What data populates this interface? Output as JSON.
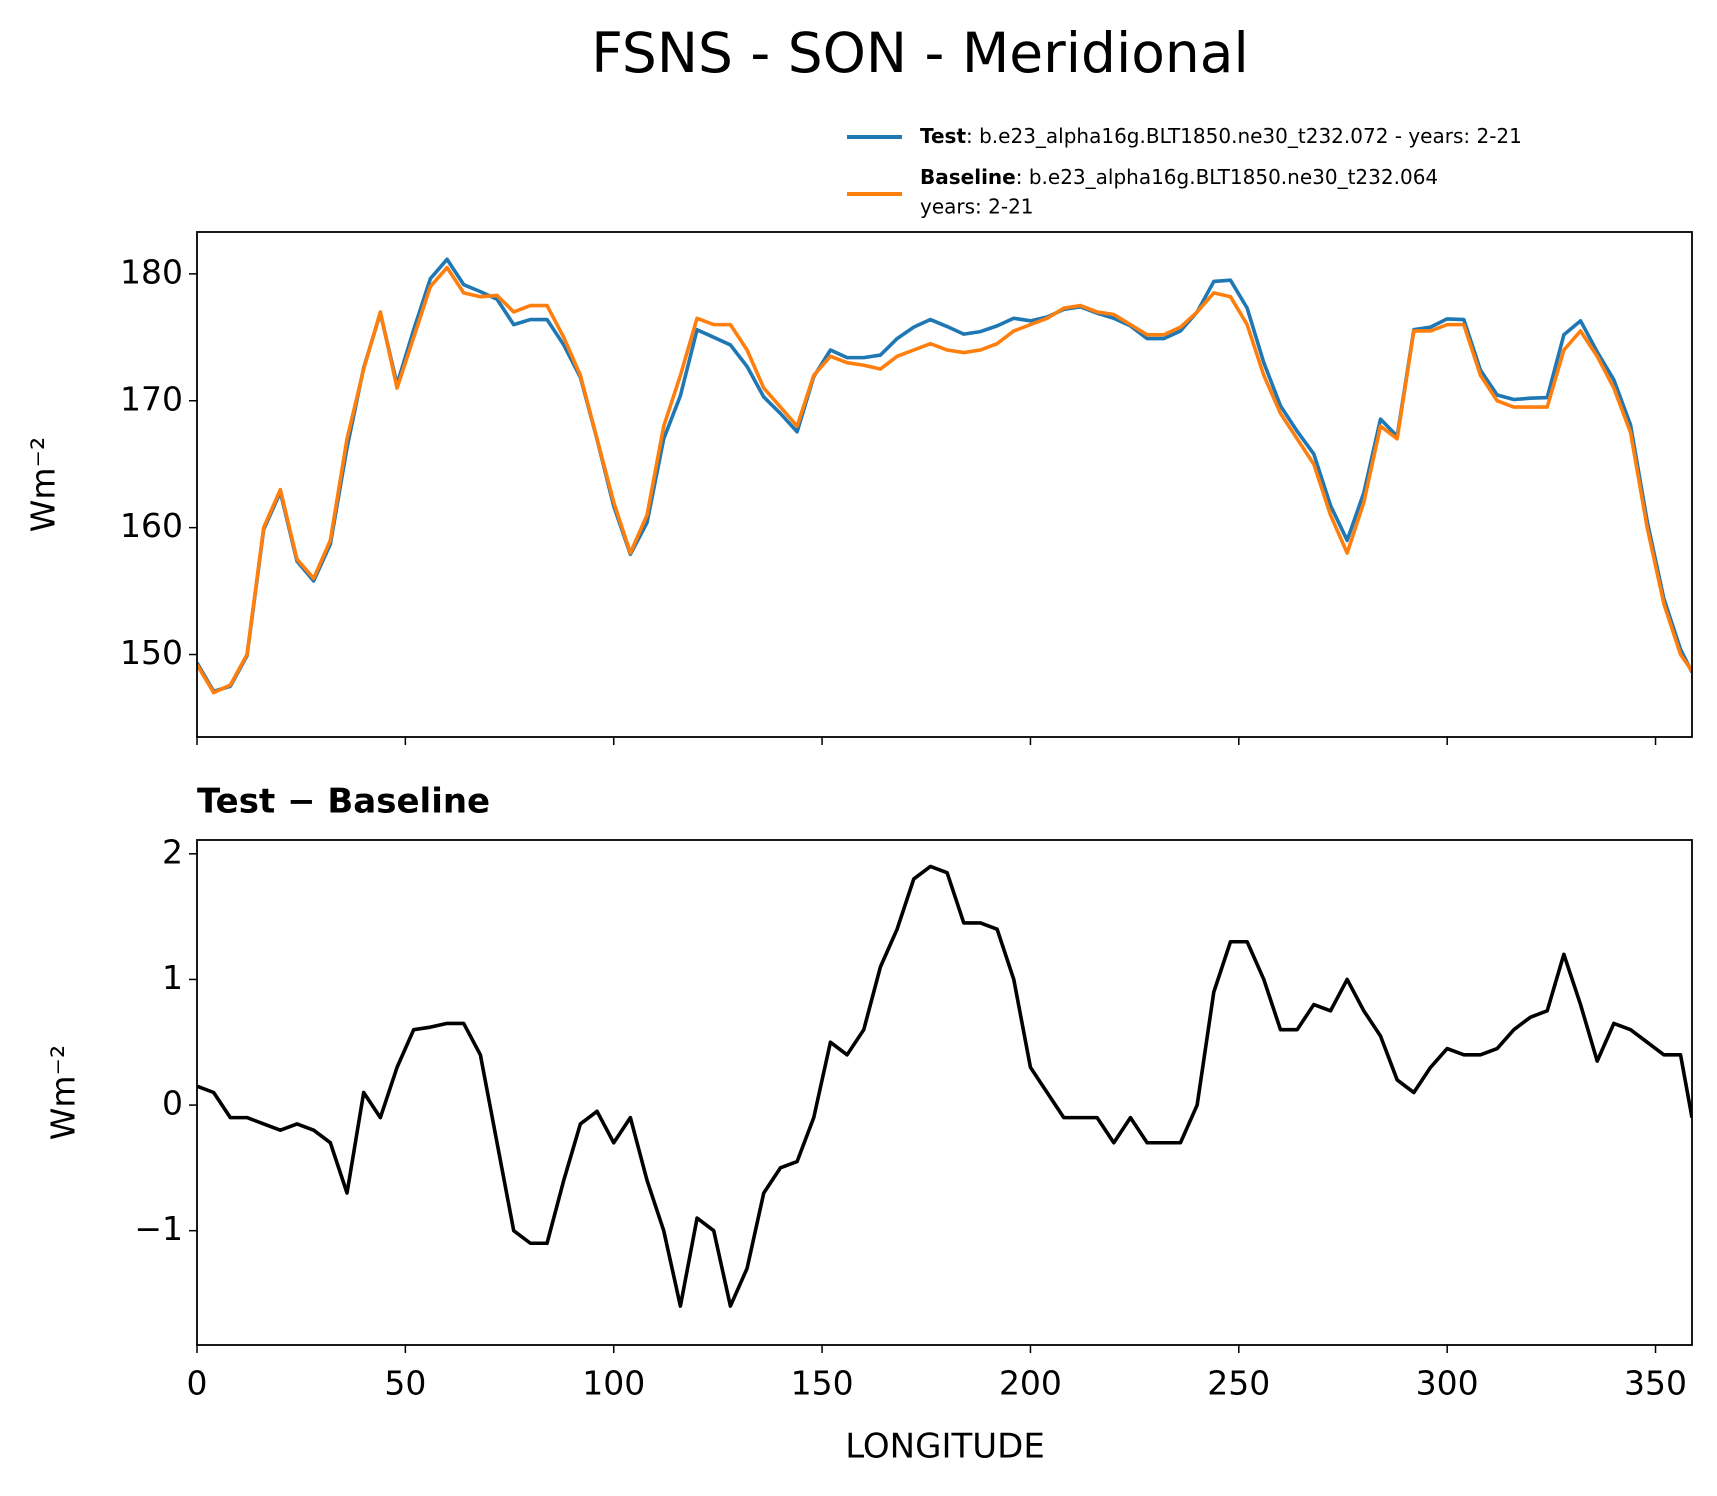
{
  "chart_data": [
    {
      "type": "line",
      "title": "FSNS - SON - Meridional",
      "ylabel": "Wm⁻²",
      "x": [
        0,
        4,
        8,
        12,
        16,
        20,
        24,
        28,
        32,
        36,
        40,
        44,
        48,
        52,
        56,
        60,
        64,
        68,
        72,
        76,
        80,
        84,
        88,
        92,
        96,
        100,
        104,
        108,
        112,
        116,
        120,
        124,
        128,
        132,
        136,
        140,
        144,
        148,
        152,
        156,
        160,
        164,
        168,
        172,
        176,
        180,
        184,
        188,
        192,
        196,
        200,
        204,
        208,
        212,
        216,
        220,
        224,
        228,
        232,
        236,
        240,
        244,
        248,
        252,
        256,
        260,
        264,
        268,
        272,
        276,
        280,
        284,
        288,
        292,
        296,
        300,
        304,
        308,
        312,
        316,
        320,
        324,
        328,
        332,
        336,
        340,
        344,
        348,
        352,
        356,
        358.75
      ],
      "series": [
        {
          "name": "Test",
          "description": [
            ": b.e23_alpha16g.BLT1850.ne30_t232.072 - years: 2-21"
          ],
          "color": "#1f77b4",
          "values": [
            149.35,
            147.1,
            147.5,
            149.9,
            159.85,
            162.8,
            157.35,
            155.8,
            158.7,
            166.3,
            172.6,
            176.9,
            171.3,
            175.6,
            179.62,
            181.15,
            179.15,
            178.6,
            178.0,
            176.0,
            176.4,
            176.4,
            174.4,
            171.85,
            166.95,
            161.7,
            157.9,
            160.4,
            167.0,
            170.4,
            175.6,
            175.0,
            174.4,
            172.7,
            170.3,
            169.0,
            167.55,
            171.9,
            174.0,
            173.4,
            173.4,
            173.6,
            174.9,
            175.8,
            176.4,
            175.85,
            175.25,
            175.45,
            175.9,
            176.5,
            176.3,
            176.6,
            177.2,
            177.4,
            176.9,
            176.5,
            175.9,
            174.9,
            174.9,
            175.5,
            177.0,
            179.4,
            179.5,
            177.3,
            173.0,
            169.6,
            167.6,
            165.8,
            161.75,
            159.0,
            162.75,
            168.55,
            167.2,
            175.6,
            175.8,
            176.45,
            176.4,
            172.4,
            170.45,
            170.1,
            170.2,
            170.25,
            175.2,
            176.3,
            173.85,
            171.65,
            168.1,
            160.5,
            154.4,
            150.4,
            148.6
          ]
        },
        {
          "name": "Baseline",
          "description": [
            ": b.e23_alpha16g.BLT1850.ne30_t232.064",
            "years: 2-21"
          ],
          "color": "#ff7f0e",
          "values": [
            149.2,
            147,
            147.6,
            150,
            160,
            163,
            157.5,
            156,
            159,
            167,
            172.5,
            177,
            171,
            175,
            179,
            180.5,
            178.5,
            178.2,
            178.3,
            177,
            177.5,
            177.5,
            175,
            172,
            167,
            162,
            158,
            161,
            168,
            172,
            176.5,
            176,
            176,
            174,
            171,
            169.5,
            168,
            172,
            173.5,
            173,
            172.8,
            172.5,
            173.5,
            174,
            174.5,
            174,
            173.8,
            174,
            174.5,
            175.5,
            176,
            176.5,
            177.3,
            177.5,
            177,
            176.8,
            176,
            175.2,
            175.2,
            175.8,
            177,
            178.5,
            178.2,
            176,
            172,
            169,
            167,
            165,
            161,
            158,
            162,
            168,
            167,
            175.5,
            175.5,
            176,
            176,
            172,
            170,
            169.5,
            169.5,
            169.5,
            174,
            175.5,
            173.5,
            171,
            167.5,
            160,
            154,
            150,
            148.7
          ]
        }
      ],
      "xlim": [
        0,
        358.75
      ],
      "xticks": [
        0,
        50,
        100,
        150,
        200,
        250,
        300,
        350
      ],
      "xtick_labels": false,
      "ylim": [
        143.5,
        183.3
      ],
      "yticks": [
        150,
        160,
        170,
        180
      ]
    },
    {
      "type": "line",
      "title": "Test − Baseline",
      "ylabel": "Wm⁻²",
      "xlabel": "LONGITUDE",
      "x": [
        0,
        4,
        8,
        12,
        16,
        20,
        24,
        28,
        32,
        36,
        40,
        44,
        48,
        52,
        56,
        60,
        64,
        68,
        72,
        76,
        80,
        84,
        88,
        92,
        96,
        100,
        104,
        108,
        112,
        116,
        120,
        124,
        128,
        132,
        136,
        140,
        144,
        148,
        152,
        156,
        160,
        164,
        168,
        172,
        176,
        180,
        184,
        188,
        192,
        196,
        200,
        204,
        208,
        212,
        216,
        220,
        224,
        228,
        232,
        236,
        240,
        244,
        248,
        252,
        256,
        260,
        264,
        268,
        272,
        276,
        280,
        284,
        288,
        292,
        296,
        300,
        304,
        308,
        312,
        316,
        320,
        324,
        328,
        332,
        336,
        340,
        344,
        348,
        352,
        356,
        358.75
      ],
      "series": [
        {
          "color": "#000000",
          "values": [
            0.15,
            0.1,
            -0.1,
            -0.1,
            -0.15,
            -0.2,
            -0.15,
            -0.2,
            -0.3,
            -0.7,
            0.1,
            -0.1,
            0.3,
            0.6,
            0.62,
            0.65,
            0.65,
            0.4,
            -0.3,
            -1.0,
            -1.1,
            -1.1,
            -0.6,
            -0.15,
            -0.05,
            -0.3,
            -0.1,
            -0.6,
            -1.0,
            -1.6,
            -0.9,
            -1.0,
            -1.6,
            -1.3,
            -0.7,
            -0.5,
            -0.45,
            -0.1,
            0.5,
            0.4,
            0.6,
            1.1,
            1.4,
            1.8,
            1.9,
            1.85,
            1.45,
            1.45,
            1.4,
            1.0,
            0.3,
            0.1,
            -0.1,
            -0.1,
            -0.1,
            -0.3,
            -0.1,
            -0.3,
            -0.3,
            -0.3,
            0.0,
            0.9,
            1.3,
            1.3,
            1.0,
            0.6,
            0.6,
            0.8,
            0.75,
            1.0,
            0.75,
            0.55,
            0.2,
            0.1,
            0.3,
            0.45,
            0.4,
            0.4,
            0.45,
            0.6,
            0.7,
            0.75,
            1.2,
            0.8,
            0.35,
            0.65,
            0.6,
            0.5,
            0.4,
            0.4,
            -0.1
          ]
        }
      ],
      "xlim": [
        0,
        358.75
      ],
      "xticks": [
        0,
        50,
        100,
        150,
        200,
        250,
        300,
        350
      ],
      "ylim": [
        -1.91,
        2.11
      ],
      "yticks": [
        {
          "value": -1,
          "label": "−1"
        },
        0,
        1,
        2
      ]
    }
  ]
}
